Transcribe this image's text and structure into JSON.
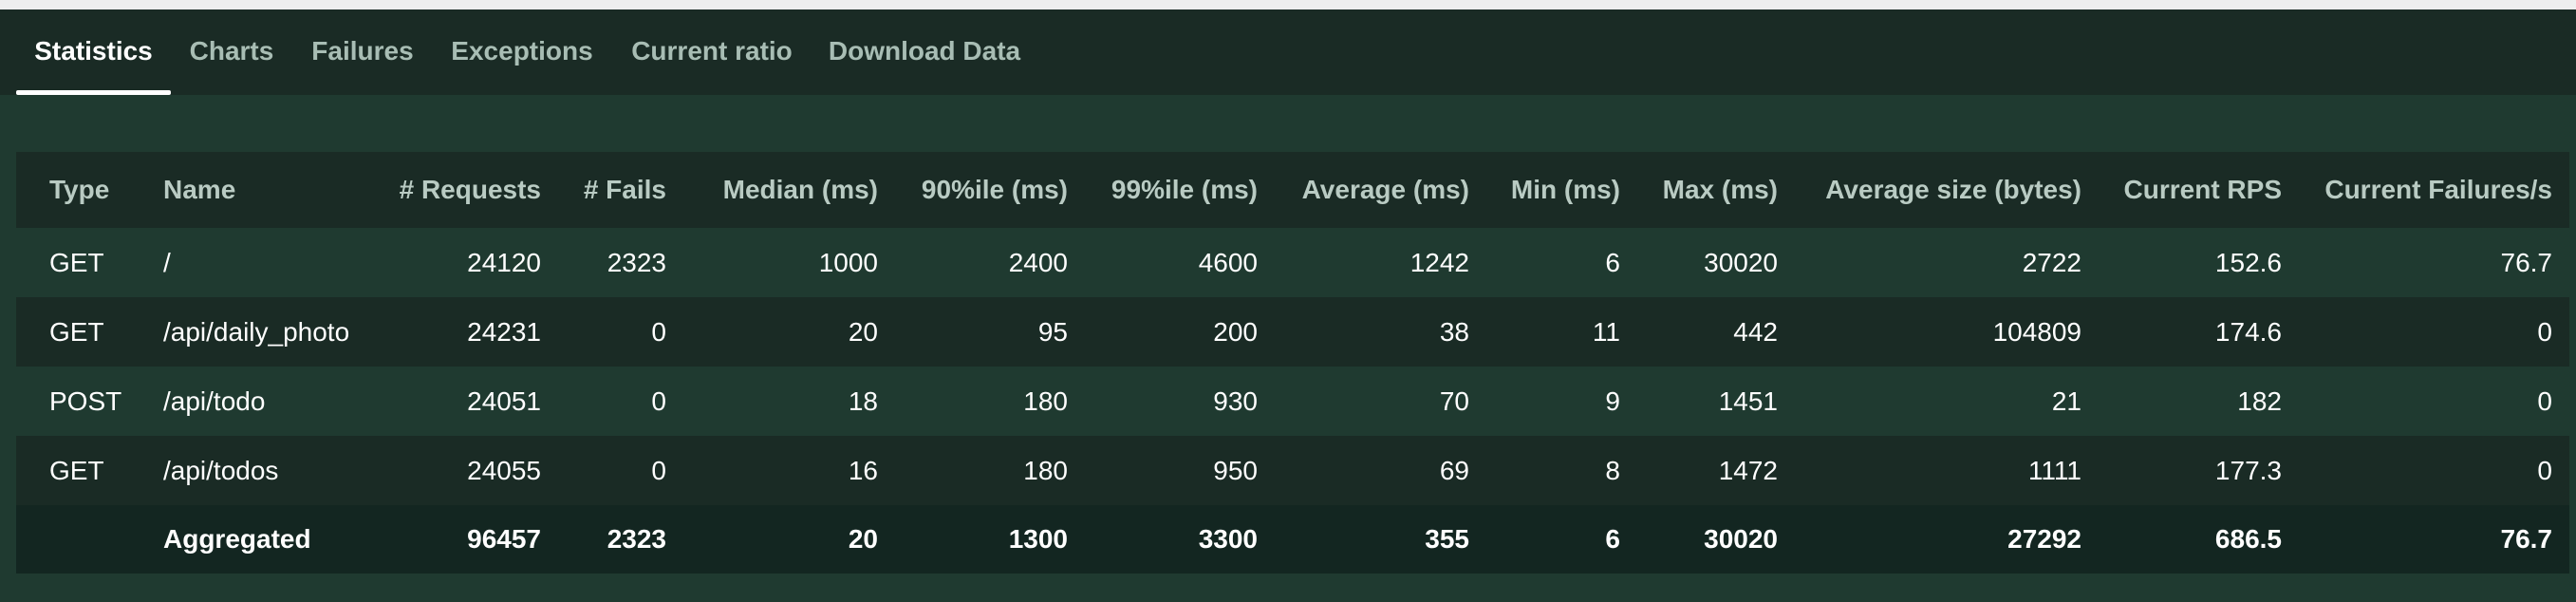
{
  "tabs": [
    {
      "label": "Statistics",
      "active": true
    },
    {
      "label": "Charts",
      "active": false
    },
    {
      "label": "Failures",
      "active": false
    },
    {
      "label": "Exceptions",
      "active": false
    },
    {
      "label": "Current ratio",
      "active": false
    },
    {
      "label": "Download Data",
      "active": false
    }
  ],
  "table": {
    "columns": [
      "Type",
      "Name",
      "# Requests",
      "# Fails",
      "Median (ms)",
      "90%ile (ms)",
      "99%ile (ms)",
      "Average (ms)",
      "Min (ms)",
      "Max (ms)",
      "Average size (bytes)",
      "Current RPS",
      "Current Failures/s"
    ],
    "rows": [
      [
        "GET",
        "/",
        "24120",
        "2323",
        "1000",
        "2400",
        "4600",
        "1242",
        "6",
        "30020",
        "2722",
        "152.6",
        "76.7"
      ],
      [
        "GET",
        "/api/daily_photo",
        "24231",
        "0",
        "20",
        "95",
        "200",
        "38",
        "11",
        "442",
        "104809",
        "174.6",
        "0"
      ],
      [
        "POST",
        "/api/todo",
        "24051",
        "0",
        "18",
        "180",
        "930",
        "70",
        "9",
        "1451",
        "21",
        "182",
        "0"
      ],
      [
        "GET",
        "/api/todos",
        "24055",
        "0",
        "16",
        "180",
        "950",
        "69",
        "8",
        "1472",
        "1111",
        "177.3",
        "0"
      ]
    ],
    "aggregated": [
      "",
      "Aggregated",
      "96457",
      "2323",
      "20",
      "1300",
      "3300",
      "355",
      "6",
      "30020",
      "27292",
      "686.5",
      "76.7"
    ]
  }
}
